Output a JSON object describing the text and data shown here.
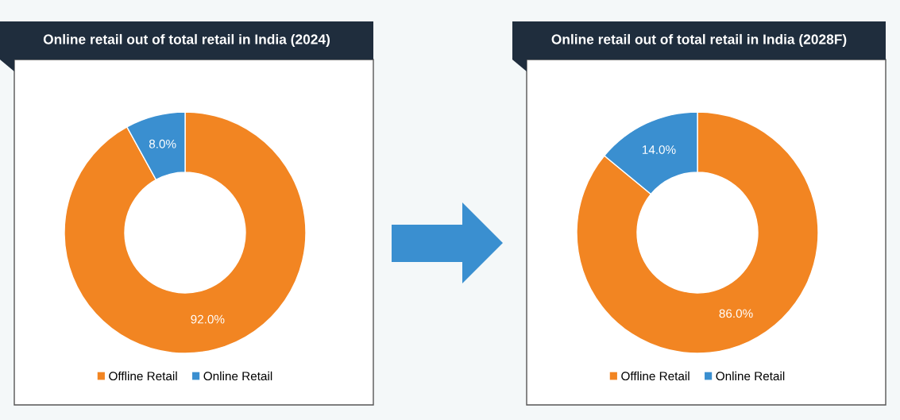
{
  "chart_data": [
    {
      "type": "donut",
      "title": "Online retail out of total retail in India (2024)",
      "categories": [
        "Offline Retail",
        "Online Retail"
      ],
      "values": [
        92.0,
        8.0
      ],
      "colors": [
        "#f28522",
        "#3a8fd0"
      ],
      "value_labels": [
        "92.0%",
        "8.0%"
      ],
      "legend": "bottom"
    },
    {
      "type": "donut",
      "title": "Online retail out of total retail in India (2028F)",
      "categories": [
        "Offline Retail",
        "Online Retail"
      ],
      "values": [
        86.0,
        14.0
      ],
      "colors": [
        "#f28522",
        "#3a8fd0"
      ],
      "value_labels": [
        "86.0%",
        "14.0%"
      ],
      "legend": "bottom"
    }
  ]
}
